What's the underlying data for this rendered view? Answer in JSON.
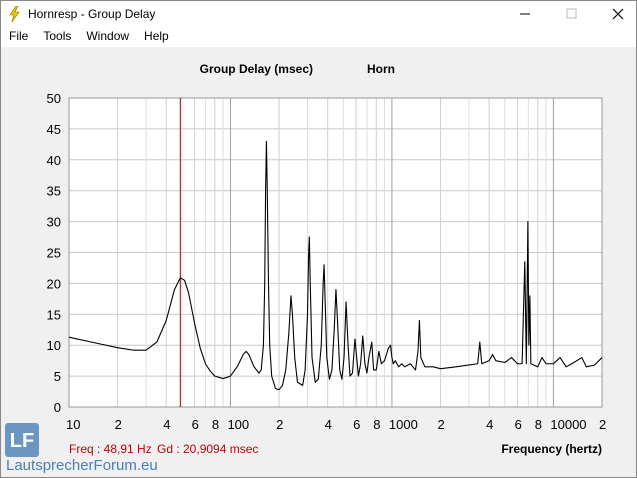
{
  "window": {
    "title": "Hornresp - Group Delay",
    "menu": [
      "File",
      "Tools",
      "Window",
      "Help"
    ]
  },
  "watermark": {
    "logo": "LF",
    "text": "LautsprecherForum.eu"
  },
  "chart_data": {
    "type": "line",
    "title": "Group Delay (msec)",
    "subtitle": "Horn",
    "x_label": "Frequency (hertz)",
    "readout": [
      "Freq : 48,91 Hz",
      "Gd : 20,9094 msec"
    ],
    "cursor": 48.91,
    "cursor_color": "#a00000",
    "xscale": "log",
    "grid": true,
    "xlim": [
      10,
      20000
    ],
    "ylim": [
      0,
      50
    ],
    "yticks": [
      0,
      5,
      10,
      15,
      20,
      25,
      30,
      35,
      40,
      45,
      50
    ],
    "xticks": [
      10,
      {
        "value": 20,
        "label": "2"
      },
      {
        "value": 40,
        "label": "4"
      },
      {
        "value": 60,
        "label": "6"
      },
      {
        "value": 80,
        "label": "8"
      },
      100,
      {
        "value": 200,
        "label": "2"
      },
      {
        "value": 400,
        "label": "4"
      },
      {
        "value": 600,
        "label": "6"
      },
      {
        "value": 800,
        "label": "8"
      },
      1000,
      {
        "value": 2000,
        "label": "2"
      },
      {
        "value": 4000,
        "label": "4"
      },
      {
        "value": 6000,
        "label": "6"
      },
      {
        "value": 8000,
        "label": "8"
      },
      10000,
      {
        "value": 20000,
        "label": "2"
      }
    ],
    "xminor": [
      30,
      50,
      70,
      90,
      300,
      500,
      700,
      900,
      3000,
      5000,
      7000,
      9000
    ],
    "x": [
      10,
      15,
      20,
      25,
      30,
      35,
      40,
      45,
      48.91,
      52,
      55,
      60,
      65,
      70,
      75,
      80,
      90,
      100,
      110,
      120,
      125,
      130,
      140,
      150,
      155,
      160,
      163,
      165,
      167,
      169,
      172,
      175,
      180,
      190,
      200,
      210,
      220,
      230,
      237,
      242,
      250,
      260,
      280,
      290,
      300,
      305,
      308,
      312,
      320,
      335,
      350,
      365,
      375,
      380,
      385,
      395,
      410,
      425,
      440,
      450,
      460,
      475,
      490,
      505,
      520,
      535,
      550,
      570,
      590,
      605,
      620,
      640,
      660,
      680,
      700,
      720,
      750,
      770,
      800,
      830,
      860,
      900,
      950,
      980,
      1000,
      1020,
      1050,
      1100,
      1150,
      1200,
      1300,
      1400,
      1450,
      1480,
      1510,
      1600,
      1800,
      2000,
      2500,
      3000,
      3400,
      3500,
      3600,
      4000,
      4200,
      4400,
      5000,
      5500,
      6000,
      6400,
      6650,
      6800,
      6950,
      7050,
      7150,
      7250,
      8000,
      8500,
      9000,
      10000,
      11000,
      12000,
      13000,
      15000,
      16000,
      18000,
      20000
    ],
    "series": [
      {
        "name": "Horn",
        "color": "#000000",
        "values": [
          11.3,
          10.3,
          9.6,
          9.2,
          9.2,
          10.5,
          14,
          19,
          20.9,
          20.5,
          18.5,
          13.5,
          9.5,
          7,
          5.8,
          5,
          4.6,
          5,
          6.5,
          8.5,
          9,
          8.5,
          6.5,
          5.5,
          6,
          10,
          20,
          35,
          43,
          35,
          20,
          10,
          5,
          3,
          2.8,
          3.5,
          6,
          12,
          18,
          15,
          8,
          4,
          3.5,
          6,
          15,
          25,
          27.5,
          20,
          8,
          4,
          4.5,
          10,
          20,
          23,
          18,
          8,
          4.5,
          6,
          13,
          19,
          14,
          6,
          4.5,
          8,
          17,
          10,
          5,
          5.5,
          11,
          8,
          5,
          7,
          11.5,
          7,
          5.5,
          8,
          10.5,
          6,
          6,
          9,
          7,
          7.5,
          9.5,
          10,
          8,
          7,
          7.5,
          6.5,
          7,
          6.5,
          7,
          6,
          9,
          14,
          8,
          6.5,
          6.5,
          6.2,
          6.5,
          6.8,
          7,
          10.5,
          7,
          7.5,
          8.5,
          7.5,
          7.2,
          8,
          7,
          7,
          23.5,
          7,
          30,
          10,
          18,
          7,
          6.5,
          8,
          7,
          7,
          8,
          6.5,
          7,
          8,
          6.5,
          6.8,
          8
        ]
      }
    ]
  }
}
